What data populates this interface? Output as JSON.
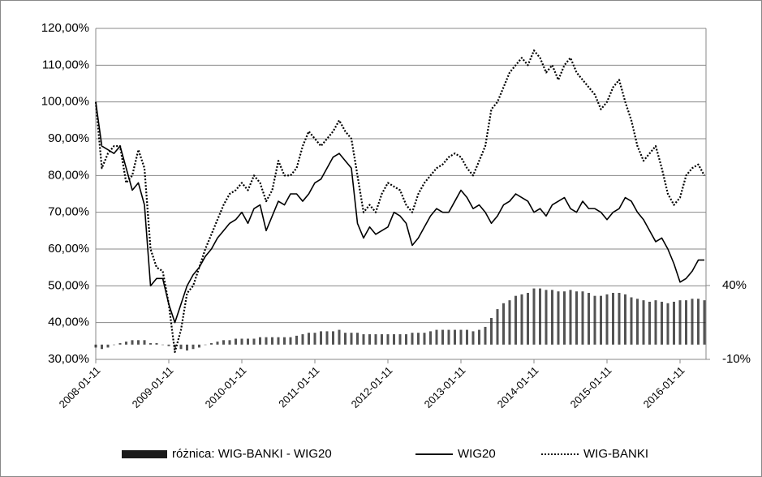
{
  "chart_data": {
    "type": "line",
    "categories": [
      "2008-01-11",
      null,
      null,
      null,
      null,
      null,
      null,
      null,
      null,
      null,
      null,
      null,
      "2009-01-11",
      null,
      null,
      null,
      null,
      null,
      null,
      null,
      null,
      null,
      null,
      null,
      "2010-01-11",
      null,
      null,
      null,
      null,
      null,
      null,
      null,
      null,
      null,
      null,
      null,
      "2011-01-11",
      null,
      null,
      null,
      null,
      null,
      null,
      null,
      null,
      null,
      null,
      null,
      "2012-01-11",
      null,
      null,
      null,
      null,
      null,
      null,
      null,
      null,
      null,
      null,
      null,
      "2013-01-11",
      null,
      null,
      null,
      null,
      null,
      null,
      null,
      null,
      null,
      null,
      null,
      "2014-01-11",
      null,
      null,
      null,
      null,
      null,
      null,
      null,
      null,
      null,
      null,
      null,
      "2015-01-11",
      null,
      null,
      null,
      null,
      null,
      null,
      null,
      null,
      null,
      null,
      null,
      "2016-01-11",
      null,
      null,
      null,
      null
    ],
    "series": [
      {
        "name": "różnica: WIG-BANKI - WIG20",
        "type": "bar",
        "axis": "y2",
        "color": "#1a1a1a",
        "values": [
          -2,
          -3,
          -2,
          0,
          1,
          2,
          3,
          3,
          3,
          1,
          1,
          0,
          -1,
          -2,
          -3,
          -4,
          -3,
          -2,
          0,
          1,
          2,
          3,
          3,
          4,
          4,
          4,
          4,
          5,
          5,
          5,
          5,
          5,
          5,
          6,
          7,
          8,
          8,
          9,
          9,
          9,
          10,
          8,
          8,
          8,
          7,
          7,
          7,
          7,
          7,
          7,
          7,
          7,
          8,
          8,
          8,
          9,
          10,
          10,
          10,
          10,
          10,
          10,
          9,
          10,
          12,
          18,
          24,
          28,
          30,
          33,
          34,
          35,
          38,
          38,
          37,
          37,
          36,
          36,
          37,
          36,
          36,
          35,
          33,
          33,
          34,
          35,
          35,
          34,
          32,
          31,
          30,
          29,
          30,
          29,
          28,
          29,
          30,
          30,
          31,
          31,
          30
        ]
      },
      {
        "name": "WIG20",
        "type": "line",
        "style": "solid",
        "color": "#000000",
        "values": [
          100,
          88,
          87,
          86,
          88,
          82,
          76,
          78,
          72,
          50,
          52,
          52,
          45,
          40,
          45,
          50,
          53,
          55,
          58,
          60,
          63,
          65,
          67,
          68,
          70,
          67,
          71,
          72,
          65,
          69,
          73,
          72,
          75,
          75,
          73,
          75,
          78,
          79,
          82,
          85,
          86,
          84,
          82,
          67,
          63,
          66,
          64,
          65,
          66,
          70,
          69,
          67,
          61,
          63,
          66,
          69,
          71,
          70,
          70,
          73,
          76,
          74,
          71,
          72,
          70,
          67,
          69,
          72,
          73,
          75,
          74,
          73,
          70,
          71,
          69,
          72,
          73,
          74,
          71,
          70,
          73,
          71,
          71,
          70,
          68,
          70,
          71,
          74,
          73,
          70,
          68,
          65,
          62,
          63,
          60,
          56,
          51,
          52,
          54,
          57,
          57
        ]
      },
      {
        "name": "WIG-BANKI",
        "type": "line",
        "style": "dotted",
        "color": "#000000",
        "values": [
          100,
          82,
          86,
          88,
          88,
          78,
          80,
          87,
          82,
          60,
          55,
          54,
          45,
          32,
          38,
          48,
          50,
          55,
          60,
          64,
          68,
          72,
          75,
          76,
          78,
          76,
          80,
          78,
          73,
          76,
          84,
          80,
          80,
          82,
          88,
          92,
          90,
          88,
          90,
          92,
          95,
          92,
          90,
          80,
          70,
          72,
          70,
          75,
          78,
          77,
          76,
          72,
          70,
          75,
          78,
          80,
          82,
          83,
          85,
          86,
          85,
          82,
          80,
          84,
          88,
          98,
          100,
          104,
          108,
          110,
          112,
          110,
          114,
          112,
          108,
          110,
          106,
          110,
          112,
          108,
          106,
          104,
          102,
          98,
          100,
          104,
          106,
          100,
          95,
          88,
          84,
          86,
          88,
          82,
          75,
          72,
          74,
          80,
          82,
          83,
          80
        ]
      }
    ],
    "ylim": [
      30,
      120
    ],
    "yticks": [
      {
        "value": 30,
        "label": "30,00%"
      },
      {
        "value": 40,
        "label": "40,00%"
      },
      {
        "value": 50,
        "label": "50,00%"
      },
      {
        "value": 60,
        "label": "60,00%"
      },
      {
        "value": 70,
        "label": "70,00%"
      },
      {
        "value": 80,
        "label": "80,00%"
      },
      {
        "value": 90,
        "label": "90,00%"
      },
      {
        "value": 100,
        "label": "100,00%"
      },
      {
        "value": 110,
        "label": "110,00%"
      },
      {
        "value": 120,
        "label": "120,00%"
      }
    ],
    "y2lim": [
      -10,
      214
    ],
    "y2ticks": [
      {
        "value": -10,
        "label": "-10%"
      },
      {
        "value": 40,
        "label": "40%"
      }
    ],
    "grid": true,
    "legend": "bottom"
  }
}
